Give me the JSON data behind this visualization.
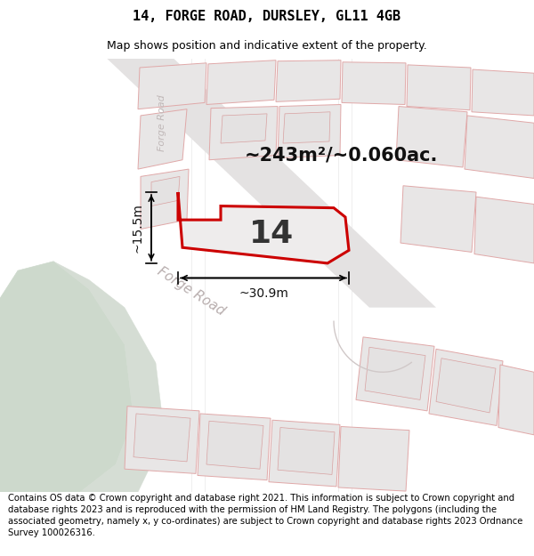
{
  "title": "14, FORGE ROAD, DURSLEY, GL11 4GB",
  "subtitle": "Map shows position and indicative extent of the property.",
  "footer": "Contains OS data © Crown copyright and database right 2021. This information is subject to Crown copyright and database rights 2023 and is reproduced with the permission of HM Land Registry. The polygons (including the associated geometry, namely x, y co-ordinates) are subject to Crown copyright and database rights 2023 Ordnance Survey 100026316.",
  "area_label": "~243m²/~0.060ac.",
  "number_label": "14",
  "width_label": "~30.9m",
  "height_label": "~15.5m",
  "road_label_diag": "Forge Road",
  "road_label_vert": "Forge Road",
  "map_bg": "#f2f0f0",
  "plot_fill": "#e8e6e6",
  "plot_fill_light": "#eeecec",
  "red_outline": "#cc0000",
  "pink_ec": "#e8a0a0",
  "green_area": "#cdd9cc",
  "green_road": "#d5ddd4",
  "gray_road": "#dedddd",
  "title_fontsize": 11,
  "subtitle_fontsize": 9,
  "footer_fontsize": 7.2,
  "area_fontsize": 15,
  "number_fontsize": 26,
  "measure_fontsize": 10
}
